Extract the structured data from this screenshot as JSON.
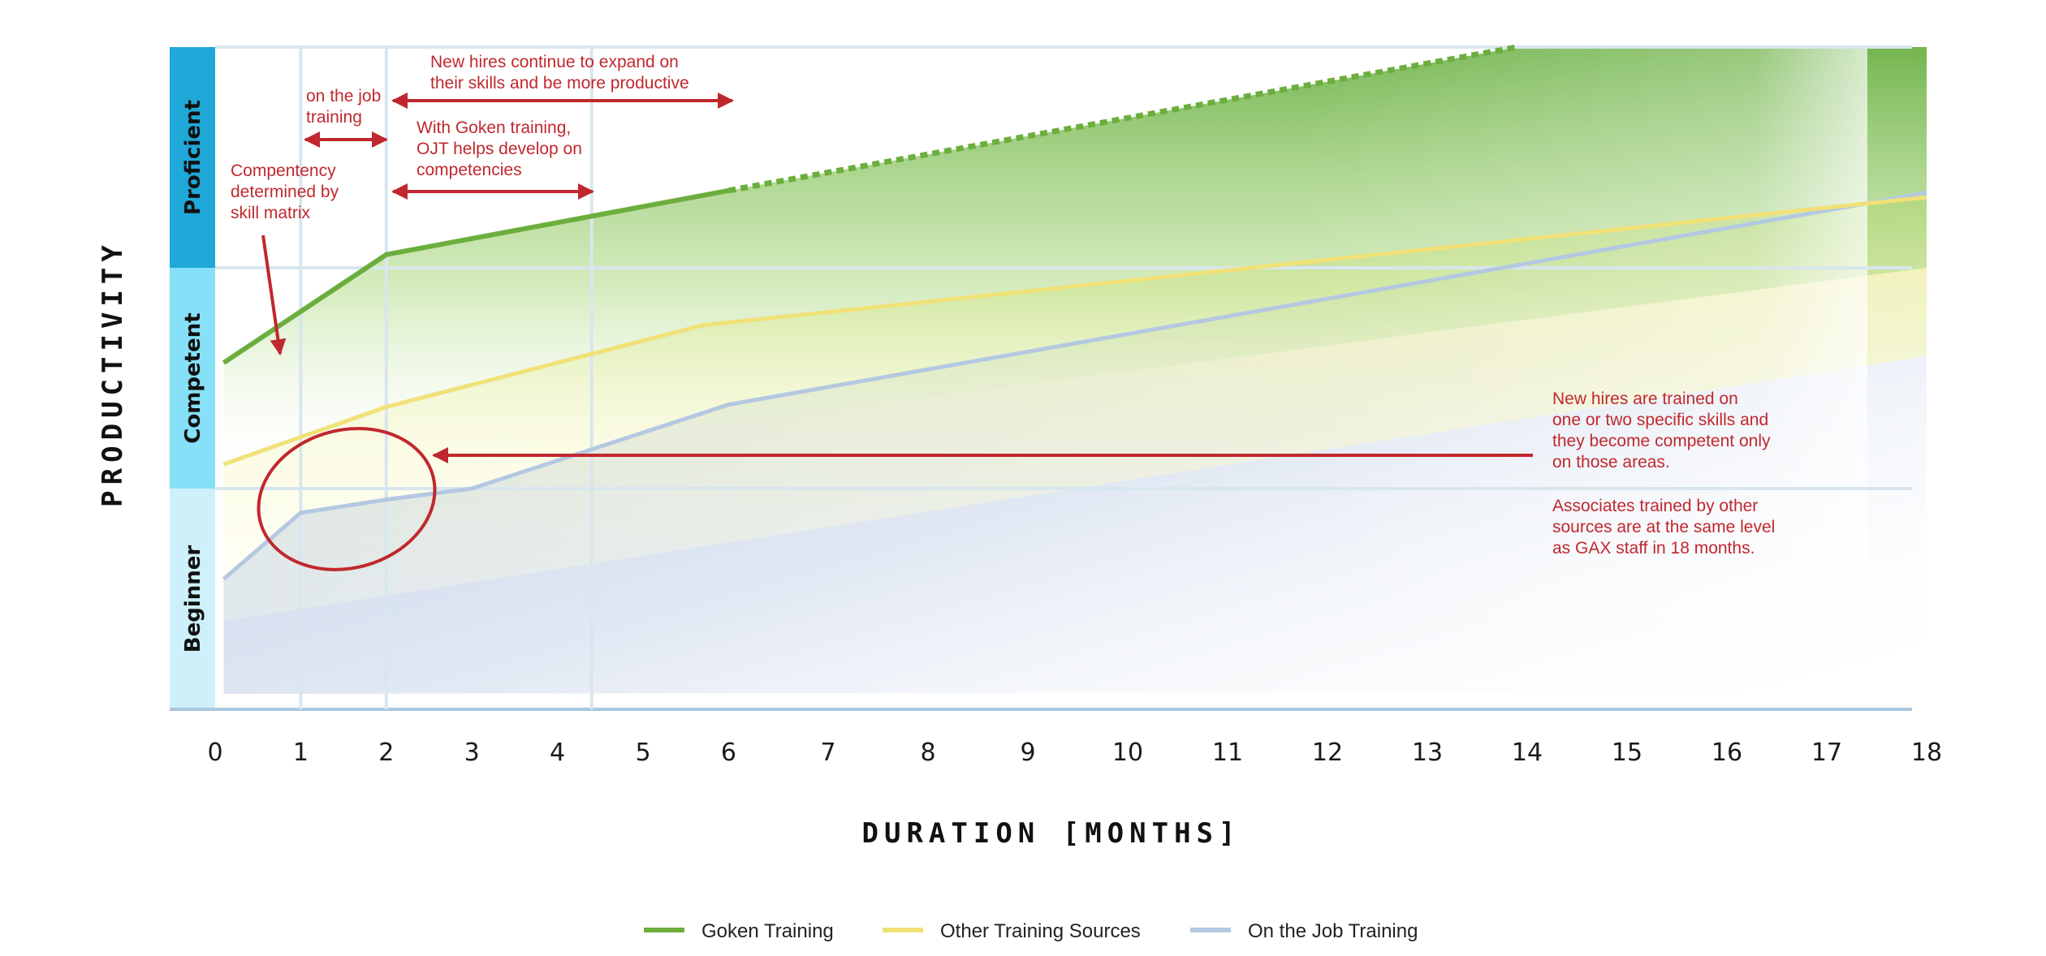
{
  "chart_data": {
    "type": "line",
    "xlabel": "DURATION [MONTHS]",
    "ylabel": "PRODUCTIVITY",
    "xlim": [
      0,
      18
    ],
    "ylim": [
      0,
      3
    ],
    "x_ticks": [
      "0",
      "1",
      "2",
      "3",
      "4",
      "5",
      "6",
      "7",
      "8",
      "9",
      "10",
      "11",
      "12",
      "13",
      "14",
      "15",
      "16",
      "17",
      "18"
    ],
    "bands": [
      {
        "name": "Beginner",
        "from": 0,
        "to": 1,
        "color": "#cdf0fa"
      },
      {
        "name": "Competent",
        "from": 1,
        "to": 2,
        "color": "#86e0f7"
      },
      {
        "name": "Proficient",
        "from": 2,
        "to": 3,
        "color": "#1fa8d8"
      }
    ],
    "markers_x": [
      1,
      2,
      4.4
    ],
    "series": [
      {
        "name": "Goken Training",
        "color": "#6cae3e",
        "x": [
          0.1,
          2,
          6,
          13.9
        ],
        "y": [
          1.57,
          2.06,
          2.35,
          3.0
        ],
        "dashed_from_x": 6
      },
      {
        "name": "Other Training Sources",
        "color": "#f0e178",
        "x": [
          0.1,
          2,
          5.7,
          18
        ],
        "y": [
          1.11,
          1.37,
          1.74,
          2.32
        ]
      },
      {
        "name": "On the Job Training",
        "color": "#b4c8e2",
        "x": [
          0.1,
          1,
          2,
          3,
          6,
          18
        ],
        "y": [
          0.59,
          0.89,
          0.95,
          1.0,
          1.38,
          2.34
        ]
      }
    ],
    "annotations": [
      {
        "id": "ojt",
        "lines": [
          "on the job",
          "training"
        ]
      },
      {
        "id": "expand",
        "lines": [
          "New hires continue to expand on",
          "their skills and be more productive"
        ]
      },
      {
        "id": "goken",
        "lines": [
          "With Goken training,",
          "OJT helps develop on",
          "competencies"
        ]
      },
      {
        "id": "compentency",
        "lines": [
          "Compentency",
          "determined by",
          "skill matrix"
        ]
      },
      {
        "id": "trained",
        "lines": [
          "New hires are trained on",
          "one or two specific skills and",
          "they become competent only",
          "on those areas."
        ]
      },
      {
        "id": "associates",
        "lines": [
          "Associates trained by other",
          "sources are at the same level",
          "as GAX staff in 18 months."
        ]
      }
    ],
    "legend": {
      "position": "bottom-center"
    }
  },
  "colors": {
    "annotation": "#c0282d",
    "grid": "#d8e6ee",
    "axis": "#a9c8dc"
  }
}
